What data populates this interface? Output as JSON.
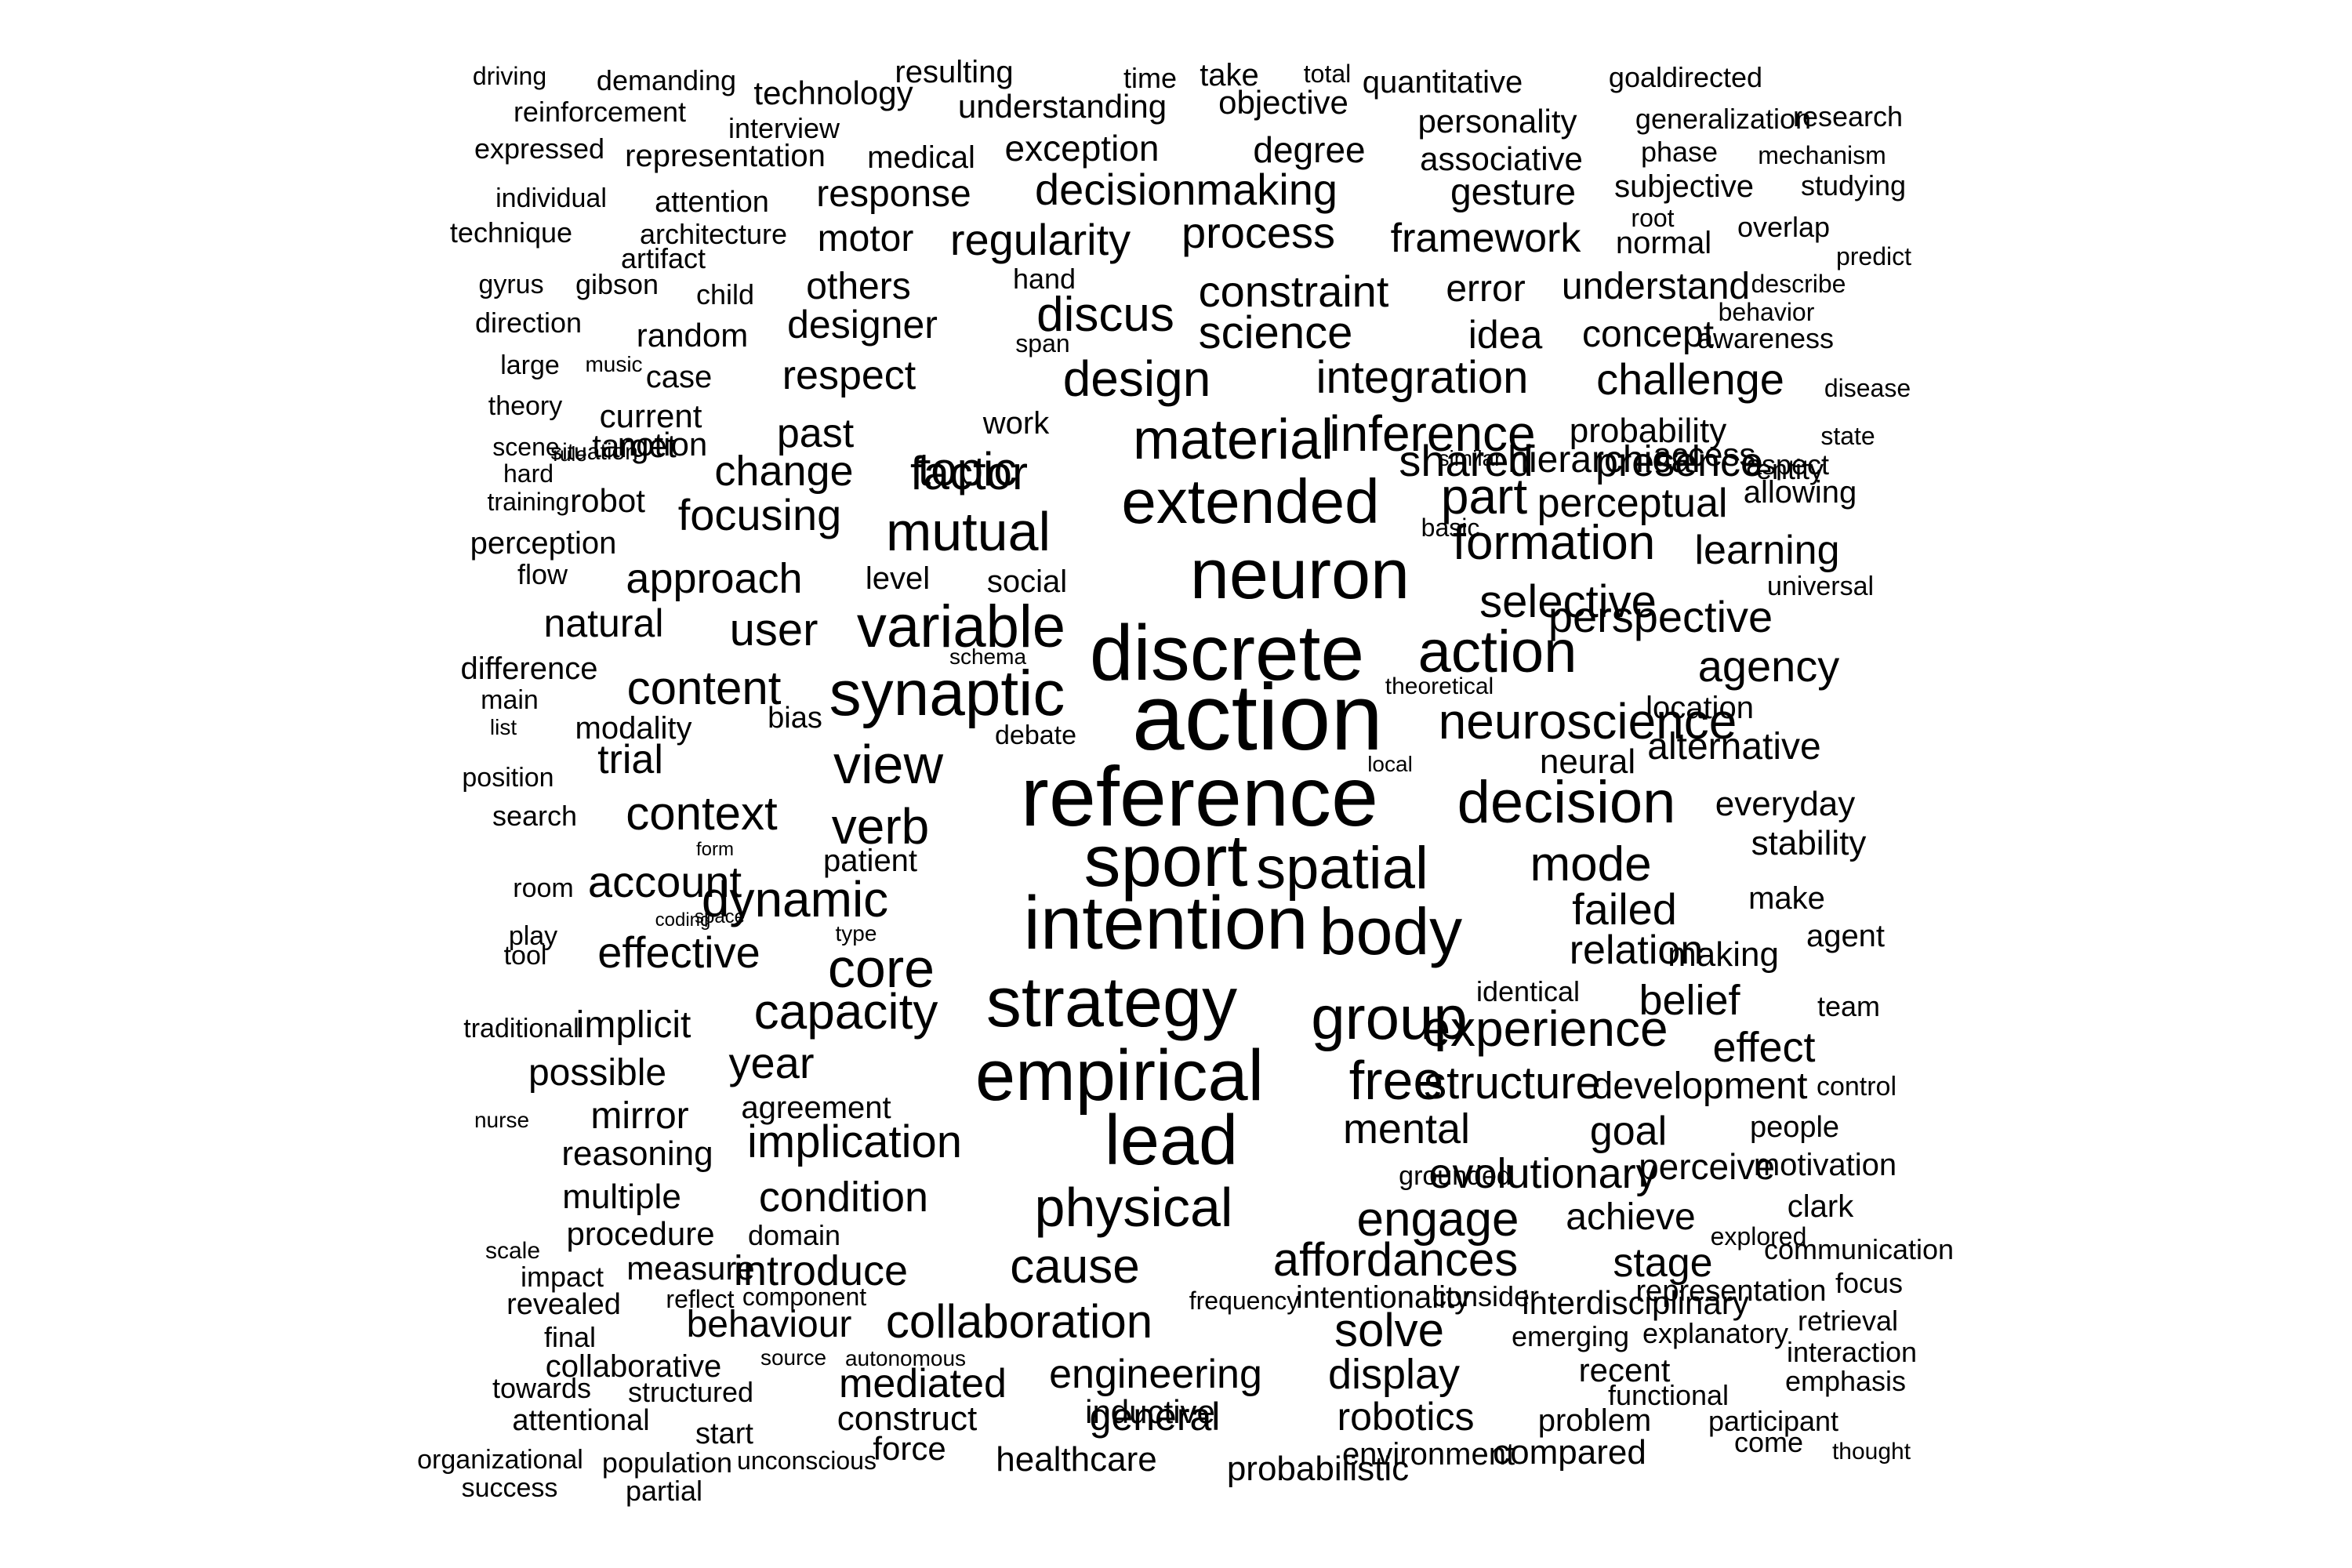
{
  "word_cloud": {
    "text_color": "#000000",
    "background_color": "#ffffff",
    "words": [
      "driving",
      "demanding",
      "technology",
      "resulting",
      "time",
      "take",
      "total",
      "quantitative",
      "goaldirected",
      "reinforcement",
      "interview",
      "understanding",
      "objective",
      "personality",
      "generalization",
      "research",
      "expressed",
      "representation",
      "medical",
      "exception",
      "degree",
      "associative",
      "phase",
      "mechanism",
      "individual",
      "attention",
      "response",
      "decisionmaking",
      "gesture",
      "subjective",
      "studying",
      "technique",
      "architecture",
      "motor",
      "regularity",
      "process",
      "framework",
      "root",
      "normal",
      "overlap",
      "artifact",
      "hand",
      "predict",
      "gyrus",
      "gibson",
      "child",
      "others",
      "constraint",
      "error",
      "understand",
      "describe",
      "direction",
      "random",
      "designer",
      "discus",
      "science",
      "idea",
      "concept",
      "behavior",
      "awareness",
      "span",
      "large",
      "music",
      "case",
      "respect",
      "design",
      "integration",
      "challenge",
      "disease",
      "theory",
      "current",
      "work",
      "material",
      "inference",
      "probability",
      "state",
      "scene",
      "situation",
      "notion",
      "past",
      "topic",
      "shared",
      "hierarchical",
      "access",
      "entity",
      "hard",
      "rule",
      "target",
      "change",
      "factor",
      "similar",
      "presence",
      "aspect",
      "training",
      "robot",
      "extended",
      "part",
      "perceptual",
      "allowing",
      "focusing",
      "mutual",
      "basic",
      "perception",
      "formation",
      "learning",
      "flow",
      "approach",
      "level",
      "social",
      "neuron",
      "universal",
      "natural",
      "selective",
      "perspective",
      "user",
      "variable",
      "difference",
      "schema",
      "discrete",
      "action",
      "agency",
      "main",
      "content",
      "theoretical",
      "list",
      "modality",
      "synaptic",
      "location",
      "bias",
      "action",
      "neuroscience",
      "debate",
      "trial",
      "alternative",
      "view",
      "position",
      "local",
      "neural",
      "reference",
      "decision",
      "everyday",
      "context",
      "verb",
      "search",
      "form",
      "patient",
      "sport",
      "spatial",
      "mode",
      "room",
      "account",
      "stability",
      "dynamic",
      "space",
      "failed",
      "make",
      "intention",
      "body",
      "play",
      "coding",
      "tool",
      "effective",
      "relation",
      "making",
      "agent",
      "core",
      "type",
      "identical",
      "strategy",
      "belief",
      "team",
      "traditional",
      "implicit",
      "capacity",
      "group",
      "experience",
      "effect",
      "possible",
      "year",
      "control",
      "empirical",
      "free",
      "structure",
      "development",
      "nurse",
      "mirror",
      "agreement",
      "people",
      "lead",
      "mental",
      "goal",
      "reasoning",
      "implication",
      "grounded",
      "evolutionary",
      "perceive",
      "motivation",
      "multiple",
      "condition",
      "physical",
      "clark",
      "engage",
      "achieve",
      "procedure",
      "domain",
      "explored",
      "scale",
      "communication",
      "affordances",
      "impact",
      "measure",
      "introduce",
      "cause",
      "stage",
      "focus",
      "revealed",
      "reflect",
      "component",
      "representation",
      "frequency",
      "intentionality",
      "consider",
      "interdisciplinary",
      "final",
      "behaviour",
      "collaboration",
      "retrieval",
      "solve",
      "emerging",
      "explanatory",
      "collaborative",
      "source",
      "autonomous",
      "interaction",
      "display",
      "recent",
      "towards",
      "structured",
      "mediated",
      "engineering",
      "functional",
      "emphasis",
      "attentional",
      "construct",
      "general",
      "robotics",
      "problem",
      "participant",
      "start",
      "come",
      "inductive",
      "force",
      "environment",
      "compared",
      "thought",
      "organizational",
      "population",
      "unconscious",
      "healthcare",
      "probabilistic",
      "success",
      "partial"
    ]
  }
}
